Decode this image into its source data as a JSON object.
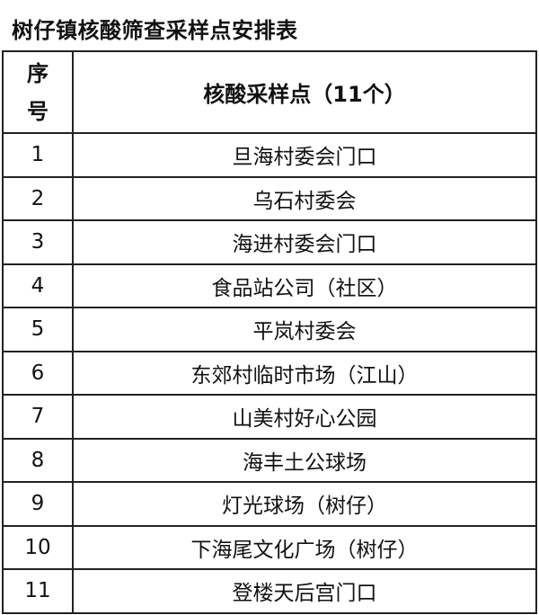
{
  "title": "树仔镇核酸筛查采样点安排表",
  "table": {
    "headers": {
      "seq_line1": "序",
      "seq_line2": "号",
      "site": "核酸采样点（11个）"
    },
    "rows": [
      {
        "no": "1",
        "site": "旦海村委会门口"
      },
      {
        "no": "2",
        "site": "乌石村委会"
      },
      {
        "no": "3",
        "site": "海进村委会门口"
      },
      {
        "no": "4",
        "site": "食品站公司（社区）"
      },
      {
        "no": "5",
        "site": "平岚村委会"
      },
      {
        "no": "6",
        "site": "东郊村临时市场（江山）"
      },
      {
        "no": "7",
        "site": "山美村好心公园"
      },
      {
        "no": "8",
        "site": "海丰土公球场"
      },
      {
        "no": "9",
        "site": "灯光球场（树仔）"
      },
      {
        "no": "10",
        "site": "下海尾文化广场（树仔）"
      },
      {
        "no": "11",
        "site": "登楼天后宫门口"
      }
    ]
  }
}
